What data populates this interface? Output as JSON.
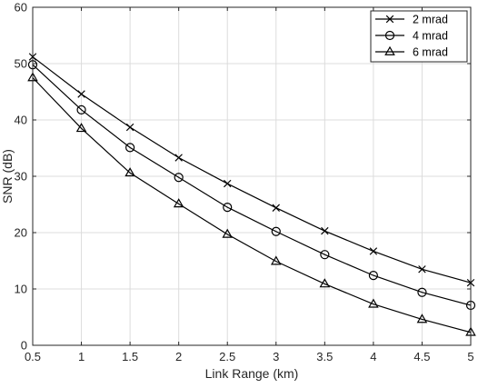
{
  "chart_data": {
    "type": "line",
    "title": "",
    "xlabel": "Link Range (km)",
    "ylabel": "SNR (dB)",
    "xlim": [
      0.5,
      5
    ],
    "ylim": [
      0,
      60
    ],
    "xticks": [
      0.5,
      1,
      1.5,
      2,
      2.5,
      3,
      3.5,
      4,
      4.5,
      5
    ],
    "xtick_labels": [
      "0.5",
      "1",
      "1.5",
      "2",
      "2.5",
      "3",
      "3.5",
      "4",
      "4.5",
      "5"
    ],
    "yticks": [
      0,
      10,
      20,
      30,
      40,
      50,
      60
    ],
    "ytick_labels": [
      "0",
      "10",
      "20",
      "30",
      "40",
      "50",
      "60"
    ],
    "grid": true,
    "legend_position": "top-right",
    "x": [
      0.5,
      1,
      1.5,
      2,
      2.5,
      3,
      3.5,
      4,
      4.5,
      5
    ],
    "series": [
      {
        "name": "2 mrad",
        "marker": "x",
        "values": [
          51.2,
          44.6,
          38.7,
          33.3,
          28.7,
          24.4,
          20.3,
          16.7,
          13.5,
          11.1
        ]
      },
      {
        "name": "4 mrad",
        "marker": "circle",
        "values": [
          49.8,
          41.8,
          35.1,
          29.8,
          24.5,
          20.2,
          16.1,
          12.4,
          9.4,
          7.1
        ]
      },
      {
        "name": "6 mrad",
        "marker": "triangle",
        "values": [
          47.5,
          38.5,
          30.6,
          25.1,
          19.7,
          14.9,
          10.9,
          7.3,
          4.6,
          2.3
        ]
      }
    ]
  }
}
